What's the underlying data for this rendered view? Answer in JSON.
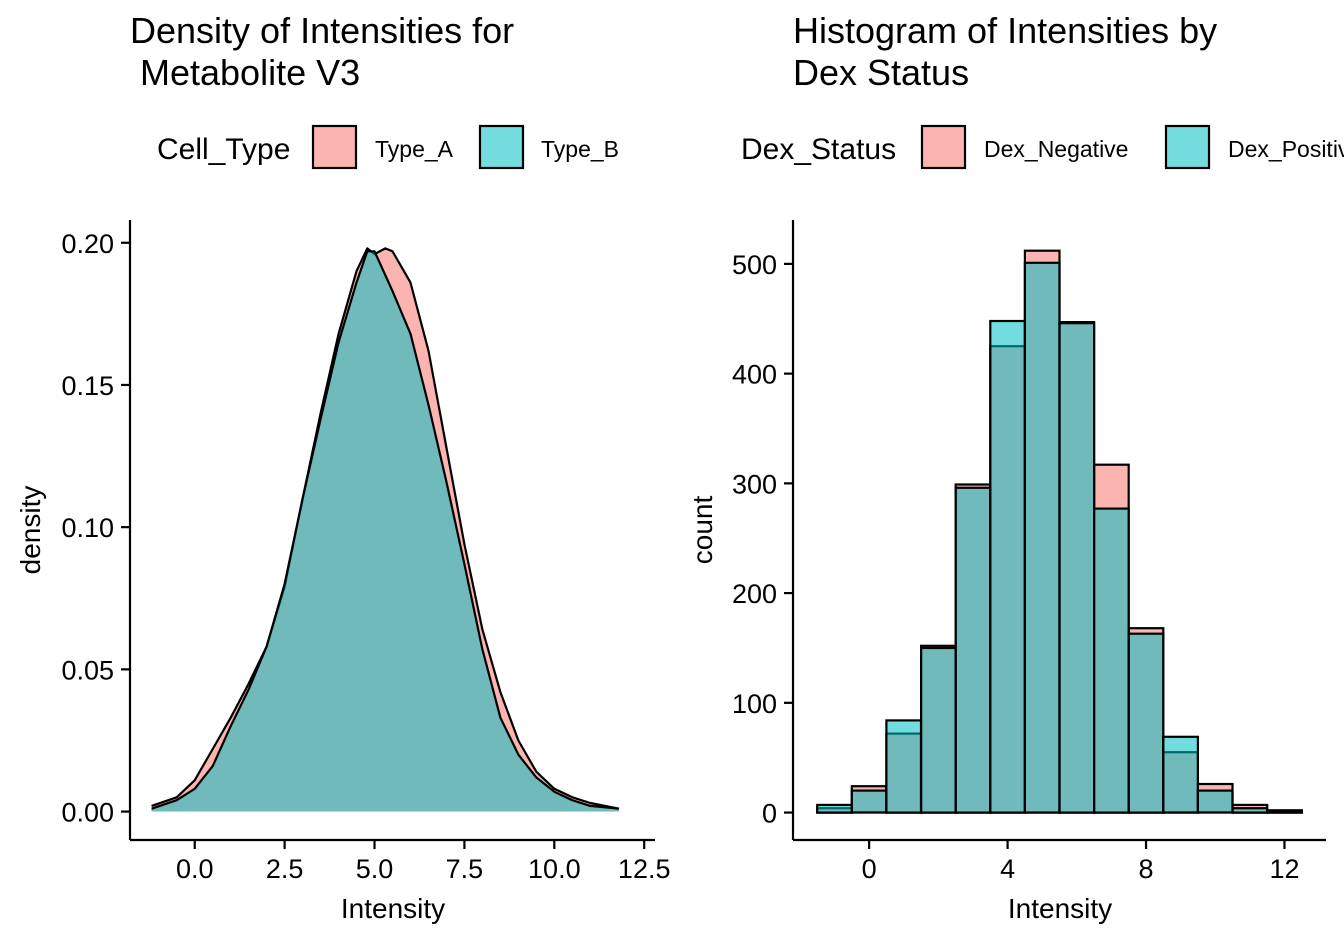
{
  "colors": {
    "group_a": "#F8766D",
    "group_b": "#00BFC4",
    "fill_opacity": 0.55,
    "outline": "#000000",
    "background": "#FFFFFF"
  },
  "chart_data": [
    {
      "type": "area",
      "title_line1": "Density of Intensities for",
      "title_line2": " Metabolite V3",
      "xlabel": "Intensity",
      "ylabel": "density",
      "xlim": [
        -1.8,
        12.8
      ],
      "ylim": [
        -0.01,
        0.208
      ],
      "x_ticks": [
        0,
        2.5,
        5,
        7.5,
        10,
        12.5
      ],
      "x_tick_labels": [
        "0.0",
        "2.5",
        "5.0",
        "7.5",
        "10.0",
        "12.5"
      ],
      "y_ticks": [
        0,
        0.05,
        0.1,
        0.15,
        0.2
      ],
      "y_tick_labels": [
        "0.00",
        "0.05",
        "0.10",
        "0.15",
        "0.20"
      ],
      "legend": {
        "title": "Cell_Type",
        "position": "top",
        "entries": [
          "Type_A",
          "Type_B"
        ]
      },
      "series": [
        {
          "name": "Type_A",
          "x": [
            -1.2,
            -0.5,
            0,
            0.5,
            1,
            1.5,
            2,
            2.5,
            3,
            3.5,
            4,
            4.5,
            4.8,
            5,
            5.3,
            5.5,
            6,
            6.5,
            7,
            7.5,
            8,
            8.5,
            9,
            9.5,
            10,
            10.5,
            11,
            11.8
          ],
          "y": [
            0.002,
            0.005,
            0.011,
            0.022,
            0.033,
            0.045,
            0.058,
            0.079,
            0.11,
            0.14,
            0.168,
            0.19,
            0.198,
            0.196,
            0.198,
            0.197,
            0.186,
            0.162,
            0.128,
            0.094,
            0.064,
            0.042,
            0.025,
            0.014,
            0.008,
            0.005,
            0.003,
            0.001
          ]
        },
        {
          "name": "Type_B",
          "x": [
            -1.2,
            -0.5,
            0,
            0.5,
            1,
            1.5,
            2,
            2.5,
            3,
            3.5,
            4,
            4.5,
            4.8,
            5,
            5.5,
            6,
            6.5,
            7,
            7.5,
            8,
            8.5,
            9,
            9.5,
            10,
            10.5,
            11,
            11.8
          ],
          "y": [
            0.001,
            0.004,
            0.008,
            0.016,
            0.03,
            0.043,
            0.058,
            0.08,
            0.11,
            0.138,
            0.165,
            0.186,
            0.197,
            0.197,
            0.183,
            0.168,
            0.143,
            0.116,
            0.087,
            0.057,
            0.033,
            0.02,
            0.012,
            0.007,
            0.004,
            0.002,
            0.001
          ]
        }
      ]
    },
    {
      "type": "bar",
      "title_line1": "Histogram of Intensities by",
      "title_line2": "Dex Status",
      "xlabel": "Intensity",
      "ylabel": "count",
      "xlim": [
        -2.2,
        13.2
      ],
      "ylim": [
        -25,
        540
      ],
      "x_ticks": [
        0,
        4,
        8,
        12
      ],
      "x_tick_labels": [
        "0",
        "4",
        "8",
        "12"
      ],
      "y_ticks": [
        0,
        100,
        200,
        300,
        400,
        500
      ],
      "y_tick_labels": [
        "0",
        "100",
        "200",
        "300",
        "400",
        "500"
      ],
      "legend": {
        "title": "Dex_Status",
        "position": "top",
        "entries": [
          "Dex_Negative",
          "Dex_Positive"
        ]
      },
      "bins": [
        {
          "x0": -1.5,
          "x1": -0.5
        },
        {
          "x0": -0.5,
          "x1": 0.5
        },
        {
          "x0": 0.5,
          "x1": 1.5
        },
        {
          "x0": 1.5,
          "x1": 2.5
        },
        {
          "x0": 2.5,
          "x1": 3.5
        },
        {
          "x0": 3.5,
          "x1": 4.5
        },
        {
          "x0": 4.5,
          "x1": 5.5
        },
        {
          "x0": 5.5,
          "x1": 6.5
        },
        {
          "x0": 6.5,
          "x1": 7.5
        },
        {
          "x0": 7.5,
          "x1": 8.5
        },
        {
          "x0": 8.5,
          "x1": 9.5
        },
        {
          "x0": 9.5,
          "x1": 10.5
        },
        {
          "x0": 10.5,
          "x1": 11.5
        },
        {
          "x0": 11.5,
          "x1": 12.5
        }
      ],
      "series": [
        {
          "name": "Dex_Negative",
          "values": [
            4,
            24,
            72,
            152,
            299,
            425,
            512,
            447,
            317,
            168,
            55,
            26,
            7,
            2
          ]
        },
        {
          "name": "Dex_Positive",
          "values": [
            7,
            20,
            84,
            150,
            296,
            448,
            501,
            446,
            277,
            163,
            69,
            20,
            4,
            2
          ]
        }
      ]
    }
  ]
}
